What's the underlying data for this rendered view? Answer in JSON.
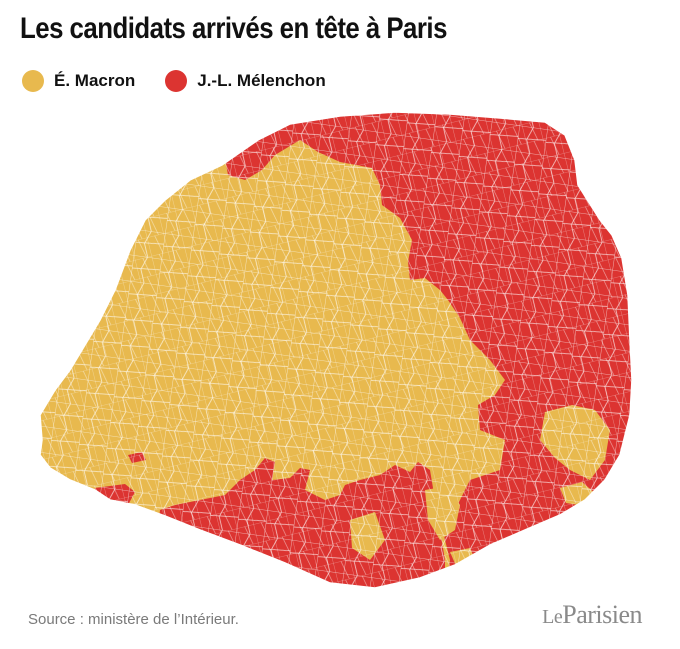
{
  "title": "Les candidats arrivés en tête à Paris",
  "legend": [
    {
      "label": "É. Macron",
      "color": "#E8B94E"
    },
    {
      "label": "J.-L. Mélenchon",
      "color": "#DC3431"
    }
  ],
  "colors": {
    "macron": "#E8B94E",
    "melenchon": "#DC3431",
    "borders": "#ffffff"
  },
  "source": "Source : ministère de l’Intérieur.",
  "logo": {
    "le": "Le",
    "name": "Parisien"
  }
}
